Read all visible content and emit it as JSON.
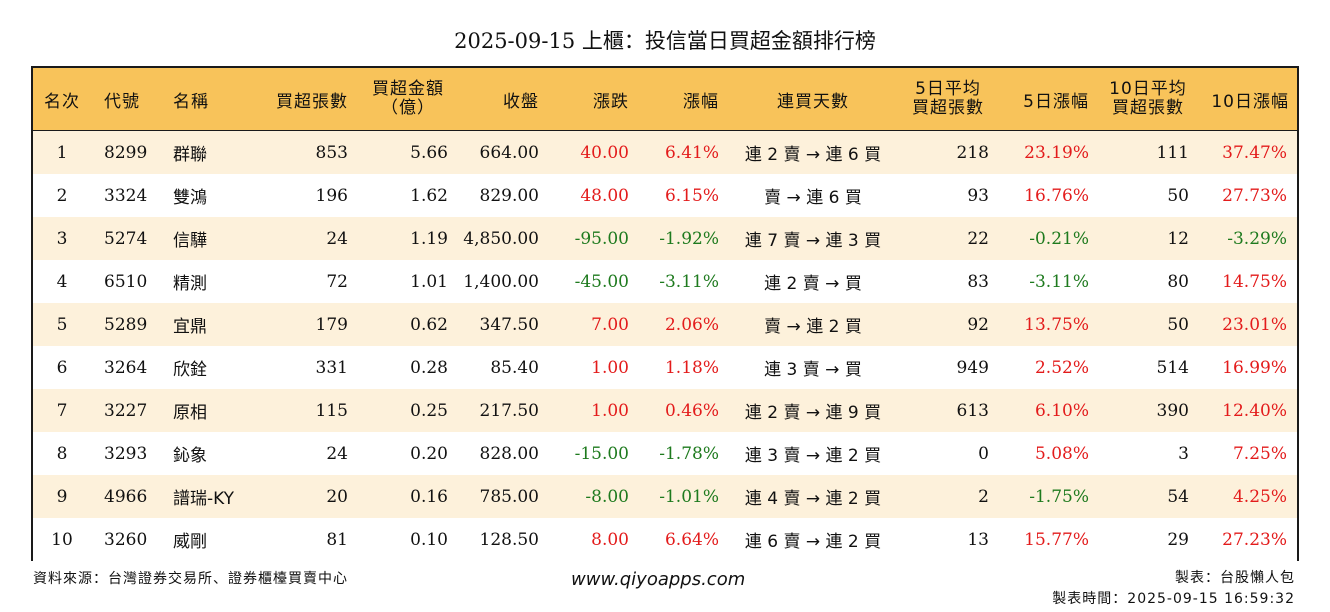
{
  "title": "2025-09-15 上櫃：投信當日買超金額排行榜",
  "colors": {
    "header_bg": "#f8c35a",
    "odd_row_bg": "#fdf1db",
    "up": "#e31b1b",
    "down": "#1e7a1e"
  },
  "headers": {
    "rank": "名次",
    "code": "代號",
    "name": "名稱",
    "buy_lots": "買超張數",
    "buy_amount_1": "買超金額",
    "buy_amount_2": "（億）",
    "close": "收盤",
    "change": "漲跌",
    "pct": "漲幅",
    "streak": "連買天數",
    "avg5_1": "5日平均",
    "avg5_2": "買超張數",
    "pct5": "5日漲幅",
    "avg10_1": "10日平均",
    "avg10_2": "買超張數",
    "pct10": "10日漲幅"
  },
  "rows": [
    {
      "rank": "1",
      "code": "8299",
      "name": "群聯",
      "buy_lots": "853",
      "amount": "5.66",
      "close": "664.00",
      "change": "40.00",
      "pct": "6.41%",
      "streak": "連 2 賣 → 連 6 買",
      "avg5": "218",
      "pct5": "23.19%",
      "avg10": "111",
      "pct10": "37.47%"
    },
    {
      "rank": "2",
      "code": "3324",
      "name": "雙鴻",
      "buy_lots": "196",
      "amount": "1.62",
      "close": "829.00",
      "change": "48.00",
      "pct": "6.15%",
      "streak": "賣 → 連 6 買",
      "avg5": "93",
      "pct5": "16.76%",
      "avg10": "50",
      "pct10": "27.73%"
    },
    {
      "rank": "3",
      "code": "5274",
      "name": "信驊",
      "buy_lots": "24",
      "amount": "1.19",
      "close": "4,850.00",
      "change": "-95.00",
      "pct": "-1.92%",
      "streak": "連 7 賣 → 連 3 買",
      "avg5": "22",
      "pct5": "-0.21%",
      "avg10": "12",
      "pct10": "-3.29%"
    },
    {
      "rank": "4",
      "code": "6510",
      "name": "精測",
      "buy_lots": "72",
      "amount": "1.01",
      "close": "1,400.00",
      "change": "-45.00",
      "pct": "-3.11%",
      "streak": "連 2 賣 → 買",
      "avg5": "83",
      "pct5": "-3.11%",
      "avg10": "80",
      "pct10": "14.75%"
    },
    {
      "rank": "5",
      "code": "5289",
      "name": "宜鼎",
      "buy_lots": "179",
      "amount": "0.62",
      "close": "347.50",
      "change": "7.00",
      "pct": "2.06%",
      "streak": "賣 → 連 2 買",
      "avg5": "92",
      "pct5": "13.75%",
      "avg10": "50",
      "pct10": "23.01%"
    },
    {
      "rank": "6",
      "code": "3264",
      "name": "欣銓",
      "buy_lots": "331",
      "amount": "0.28",
      "close": "85.40",
      "change": "1.00",
      "pct": "1.18%",
      "streak": "連 3 賣 → 買",
      "avg5": "949",
      "pct5": "2.52%",
      "avg10": "514",
      "pct10": "16.99%"
    },
    {
      "rank": "7",
      "code": "3227",
      "name": "原相",
      "buy_lots": "115",
      "amount": "0.25",
      "close": "217.50",
      "change": "1.00",
      "pct": "0.46%",
      "streak": "連 2 賣 → 連 9 買",
      "avg5": "613",
      "pct5": "6.10%",
      "avg10": "390",
      "pct10": "12.40%"
    },
    {
      "rank": "8",
      "code": "3293",
      "name": "鈊象",
      "buy_lots": "24",
      "amount": "0.20",
      "close": "828.00",
      "change": "-15.00",
      "pct": "-1.78%",
      "streak": "連 3 賣 → 連 2 買",
      "avg5": "0",
      "pct5": "5.08%",
      "avg10": "3",
      "pct10": "7.25%"
    },
    {
      "rank": "9",
      "code": "4966",
      "name": "譜瑞-KY",
      "buy_lots": "20",
      "amount": "0.16",
      "close": "785.00",
      "change": "-8.00",
      "pct": "-1.01%",
      "streak": "連 4 賣 → 連 2 買",
      "avg5": "2",
      "pct5": "-1.75%",
      "avg10": "54",
      "pct10": "4.25%"
    },
    {
      "rank": "10",
      "code": "3260",
      "name": "威剛",
      "buy_lots": "81",
      "amount": "0.10",
      "close": "128.50",
      "change": "8.00",
      "pct": "6.64%",
      "streak": "連 6 賣 → 連 2 買",
      "avg5": "13",
      "pct5": "15.77%",
      "avg10": "29",
      "pct10": "27.23%"
    }
  ],
  "footer": {
    "source": "資料來源：台灣證券交易所、證券櫃檯買賣中心",
    "website": "www.qiyoapps.com",
    "maker": "製表：台股懶人包",
    "made_time": "製表時間：2025-09-15 16:59:32"
  }
}
